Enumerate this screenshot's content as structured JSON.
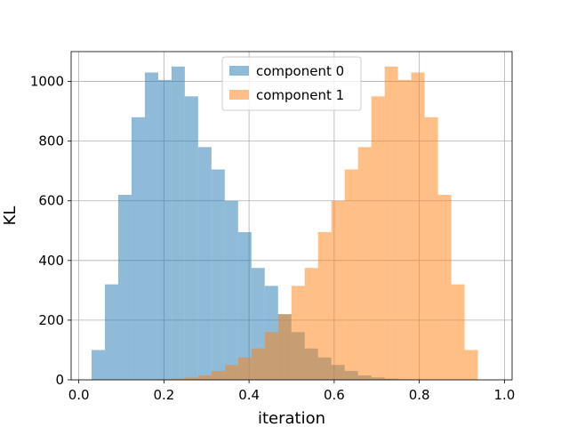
{
  "chart_data": {
    "type": "bar",
    "subtype": "overlapping-histogram",
    "title": "",
    "xlabel": "iteration",
    "ylabel": "KL",
    "xlim": [
      -0.018,
      1.018
    ],
    "ylim": [
      0,
      1100
    ],
    "xticks": [
      0.0,
      0.2,
      0.4,
      0.6,
      0.8,
      1.0
    ],
    "xtick_labels": [
      "0.0",
      "0.2",
      "0.4",
      "0.6",
      "0.8",
      "1.0"
    ],
    "yticks": [
      0,
      200,
      400,
      600,
      800,
      1000
    ],
    "ytick_labels": [
      "0",
      "200",
      "400",
      "600",
      "800",
      "1000"
    ],
    "grid": true,
    "legend_position": "top-center",
    "bin_width": 0.0313,
    "series": [
      {
        "name": "component 0",
        "color": "#1f77b4",
        "alpha": 0.5,
        "bin_start": 0.03,
        "counts": [
          100,
          320,
          620,
          880,
          1030,
          1005,
          1050,
          950,
          780,
          705,
          600,
          495,
          375,
          315,
          220,
          160,
          105,
          75,
          50,
          30,
          15,
          8,
          4,
          2,
          1,
          0,
          0,
          0,
          0,
          0
        ]
      },
      {
        "name": "component 1",
        "color": "#ff7f0e",
        "alpha": 0.5,
        "bin_start": 0.03,
        "counts": [
          0,
          0,
          0,
          0,
          1,
          2,
          4,
          8,
          15,
          30,
          50,
          75,
          105,
          160,
          220,
          315,
          375,
          495,
          600,
          705,
          780,
          950,
          1050,
          1005,
          1030,
          880,
          620,
          320,
          100,
          0
        ]
      }
    ]
  }
}
